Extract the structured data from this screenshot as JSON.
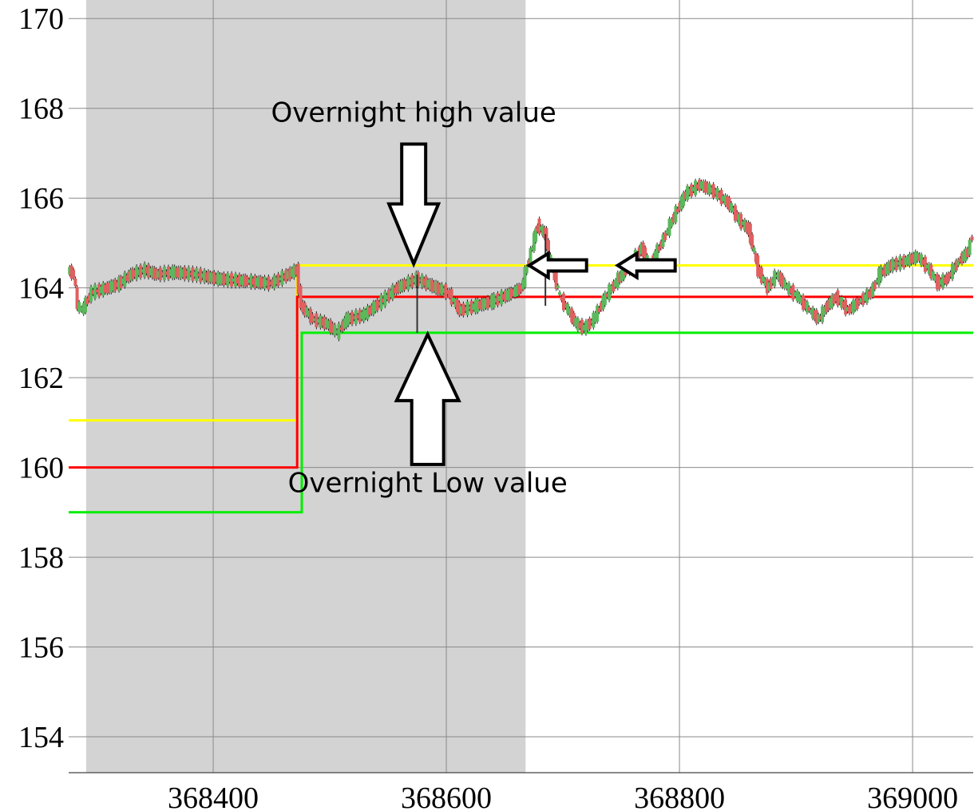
{
  "chart_data": {
    "type": "candlestick",
    "title": "",
    "xlabel": "",
    "ylabel": "",
    "xlim": [
      368276,
      369052
    ],
    "ylim": [
      153.2,
      170.2
    ],
    "x_ticks": [
      368400,
      368600,
      368800,
      369000
    ],
    "x_tick_labels": [
      "368400",
      "368600",
      "368800",
      "369000"
    ],
    "y_ticks": [
      154,
      156,
      158,
      160,
      162,
      164,
      166,
      168,
      170
    ],
    "y_tick_labels": [
      "154",
      "156",
      "158",
      "160",
      "162",
      "164",
      "166",
      "168",
      "170"
    ],
    "grid": true,
    "shaded_region": {
      "x_start": 368291,
      "x_end": 368668,
      "color": "#d3d3d3"
    },
    "reference_lines": [
      {
        "color": "#ffff00",
        "segments": [
          {
            "x": [
              368276,
              368472
            ],
            "y": 161.05
          },
          {
            "x": [
              368472,
              369052
            ],
            "y": 164.5
          }
        ]
      },
      {
        "color": "#ff0000",
        "segments": [
          {
            "x": [
              368276,
              368472
            ],
            "y": 160.0
          },
          {
            "x": [
              368472,
              369052
            ],
            "y": 163.8
          }
        ]
      },
      {
        "color": "#00ee00",
        "segments": [
          {
            "x": [
              368276,
              368476
            ],
            "y": 159.0
          },
          {
            "x": [
              368476,
              369052
            ],
            "y": 163.0
          }
        ]
      }
    ],
    "price_path": [
      [
        368276,
        164.4
      ],
      [
        368281,
        164.3
      ],
      [
        368284,
        163.6
      ],
      [
        368288,
        163.5
      ],
      [
        368296,
        163.9
      ],
      [
        368310,
        164.0
      ],
      [
        368320,
        164.1
      ],
      [
        368330,
        164.3
      ],
      [
        368342,
        164.4
      ],
      [
        368352,
        164.3
      ],
      [
        368366,
        164.35
      ],
      [
        368385,
        164.3
      ],
      [
        368405,
        164.2
      ],
      [
        368430,
        164.15
      ],
      [
        368450,
        164.1
      ],
      [
        368465,
        164.3
      ],
      [
        368472,
        164.4
      ],
      [
        368476,
        163.6
      ],
      [
        368486,
        163.3
      ],
      [
        368498,
        163.2
      ],
      [
        368507,
        163.0
      ],
      [
        368515,
        163.3
      ],
      [
        368530,
        163.4
      ],
      [
        368545,
        163.7
      ],
      [
        368558,
        164.0
      ],
      [
        368575,
        164.2
      ],
      [
        368592,
        164.0
      ],
      [
        368602,
        163.9
      ],
      [
        368612,
        163.5
      ],
      [
        368626,
        163.6
      ],
      [
        368640,
        163.7
      ],
      [
        368658,
        163.9
      ],
      [
        368665,
        164.0
      ],
      [
        368673,
        164.8
      ],
      [
        368679,
        165.4
      ],
      [
        368685,
        165.2
      ],
      [
        368692,
        164.4
      ],
      [
        368698,
        163.8
      ],
      [
        368705,
        163.5
      ],
      [
        368712,
        163.2
      ],
      [
        368719,
        163.1
      ],
      [
        368727,
        163.3
      ],
      [
        368737,
        163.8
      ],
      [
        368748,
        164.2
      ],
      [
        368758,
        164.5
      ],
      [
        368768,
        164.9
      ],
      [
        368775,
        164.5
      ],
      [
        368785,
        165.0
      ],
      [
        368796,
        165.6
      ],
      [
        368806,
        166.1
      ],
      [
        368818,
        166.3
      ],
      [
        368830,
        166.15
      ],
      [
        368842,
        165.9
      ],
      [
        368852,
        165.5
      ],
      [
        368860,
        165.3
      ],
      [
        368868,
        164.4
      ],
      [
        368876,
        164.0
      ],
      [
        368884,
        164.3
      ],
      [
        368893,
        164.0
      ],
      [
        368902,
        163.8
      ],
      [
        368912,
        163.5
      ],
      [
        368920,
        163.3
      ],
      [
        368927,
        163.6
      ],
      [
        368935,
        163.8
      ],
      [
        368945,
        163.5
      ],
      [
        368955,
        163.7
      ],
      [
        368965,
        163.9
      ],
      [
        368972,
        164.3
      ],
      [
        368982,
        164.5
      ],
      [
        368995,
        164.6
      ],
      [
        369005,
        164.7
      ],
      [
        369015,
        164.4
      ],
      [
        369022,
        164.1
      ],
      [
        369030,
        164.2
      ],
      [
        369040,
        164.6
      ],
      [
        369048,
        164.8
      ],
      [
        369052,
        165.2
      ]
    ],
    "spikes": [
      {
        "x": 368575,
        "low": 163.0,
        "high": 164.3
      },
      {
        "x": 368685,
        "low": 163.6,
        "high": 165.2
      }
    ],
    "annotations": [
      {
        "text": "Overnight high value",
        "x": 368572,
        "y": 167.7,
        "arrow": "down",
        "arrow_tip": {
          "x": 368572,
          "y": 164.5
        }
      },
      {
        "text": "Overnight Low value",
        "x": 368584,
        "y": 159.45,
        "arrow": "up",
        "arrow_tip": {
          "x": 368584,
          "y": 163.0
        }
      },
      {
        "text": "",
        "arrow": "left",
        "arrow_tip": {
          "x": 368671,
          "y": 164.5
        }
      },
      {
        "text": "",
        "arrow": "left",
        "arrow_tip": {
          "x": 368747,
          "y": 164.5
        }
      }
    ]
  }
}
